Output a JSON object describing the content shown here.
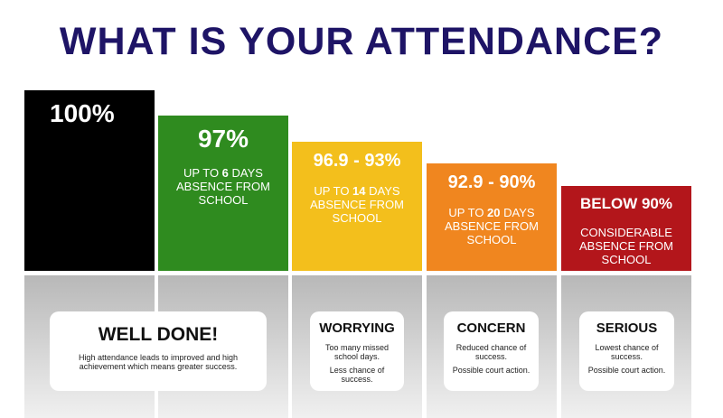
{
  "title": {
    "before": "WHAT IS ",
    "emphasis": "YOUR",
    "after": " ATTENDANCE?"
  },
  "levels": [
    {
      "range": "100%"
    },
    {
      "range": "97%",
      "description": {
        "before": "UP TO ",
        "emphasis": "6",
        "after": " DAYS ABSENCE FROM SCHOOL"
      }
    },
    {
      "range": "96.9 - 93%",
      "description": {
        "before": "UP TO ",
        "emphasis": "14",
        "after": " DAYS ABSENCE FROM SCHOOL"
      }
    },
    {
      "range": "92.9 - 90%",
      "description": {
        "before": "UP TO ",
        "emphasis": "20",
        "after": " DAYS ABSENCE FROM SCHOOL"
      }
    },
    {
      "range": "BELOW 90%",
      "description": "CONSIDERABLE ABSENCE FROM SCHOOL"
    }
  ],
  "cards": [
    {
      "heading": "WELL DONE!",
      "lines": [
        "High attendance leads to improved and high achievement which means greater success."
      ]
    },
    {
      "heading": "WORRYING",
      "lines": [
        "Too many missed school days.",
        "Less chance of success."
      ]
    },
    {
      "heading": "CONCERN",
      "lines": [
        "Reduced chance of success.",
        "Possible court action."
      ]
    },
    {
      "heading": "SERIOUS",
      "lines": [
        "Lowest chance of success.",
        "Possible court action."
      ]
    }
  ]
}
